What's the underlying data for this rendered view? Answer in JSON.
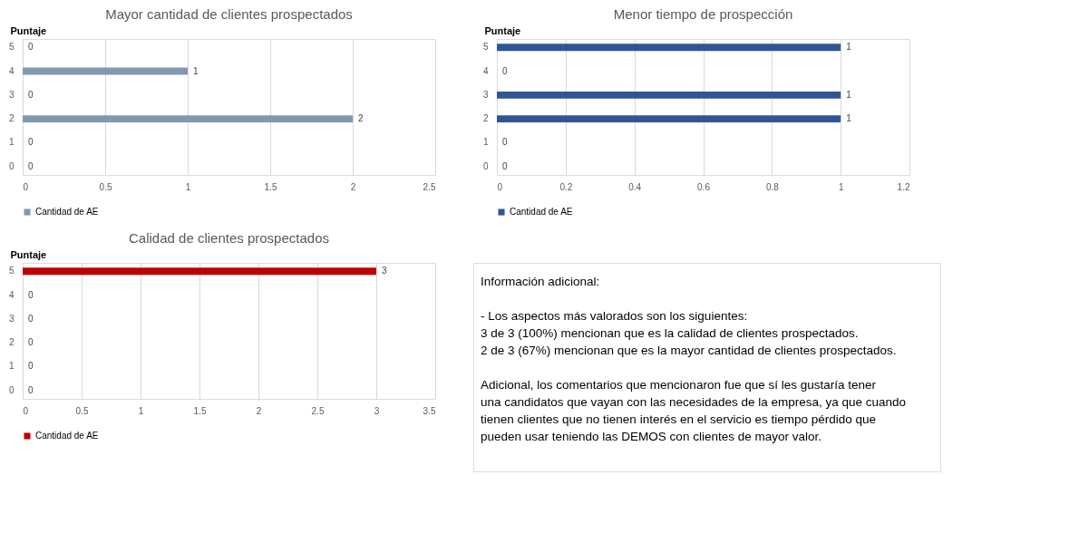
{
  "chart_data": [
    {
      "type": "bar",
      "orientation": "horizontal",
      "title": "Mayor cantidad de clientes prospectados",
      "ylabel": "Puntaje",
      "categories": [
        "5",
        "4",
        "3",
        "2",
        "1",
        "0"
      ],
      "series": [
        {
          "name": "Cantidad de AE",
          "color": "#8497b0",
          "values": [
            0,
            1,
            0,
            2,
            0,
            0
          ]
        }
      ],
      "xlim": [
        0,
        2.5
      ],
      "xticks": [
        0,
        0.5,
        1,
        1.5,
        2,
        2.5
      ],
      "grid": "x",
      "legend": "bottom",
      "data_labels": true
    },
    {
      "type": "bar",
      "orientation": "horizontal",
      "title": "Menor tiempo de prospección",
      "ylabel": "Puntaje",
      "categories": [
        "5",
        "4",
        "3",
        "2",
        "1",
        "0"
      ],
      "series": [
        {
          "name": "Cantidad de AE",
          "color": "#2f5597",
          "values": [
            1,
            0,
            1,
            1,
            0,
            0
          ]
        }
      ],
      "xlim": [
        0,
        1.2
      ],
      "xticks": [
        0,
        0.2,
        0.4,
        0.6,
        0.8,
        1,
        1.2
      ],
      "grid": "x",
      "legend": "bottom",
      "data_labels": true
    },
    {
      "type": "bar",
      "orientation": "horizontal",
      "title": "Calidad de clientes prospectados",
      "ylabel": "Puntaje",
      "categories": [
        "5",
        "4",
        "3",
        "2",
        "1",
        "0"
      ],
      "series": [
        {
          "name": "Cantidad de AE",
          "color": "#c00000",
          "values": [
            3,
            0,
            0,
            0,
            0,
            0
          ]
        }
      ],
      "xlim": [
        0,
        3.5
      ],
      "xticks": [
        0,
        0.5,
        1,
        1.5,
        2,
        2.5,
        3,
        3.5
      ],
      "grid": "x",
      "legend": "bottom",
      "data_labels": true
    },
    {
      "type": "other",
      "title": "Información adicional:",
      "annotations": [
        "- Los aspectos más valorados son los siguientes:",
        "   3 de 3 (100%) mencionan que es la calidad de clientes prospectados.",
        "   2 de 3 (67%) mencionan que es la mayor cantidad de clientes prospectados.",
        "Adicional, los comentarios que mencionaron fue que sí les gustaría tener una candidatos que vayan con las necesidades de la empresa, ya que cuando tienen clientes que no tienen interés en el servicio es tiempo pérdido que pueden usar teniendo las DEMOS con clientes de mayor valor."
      ]
    }
  ]
}
